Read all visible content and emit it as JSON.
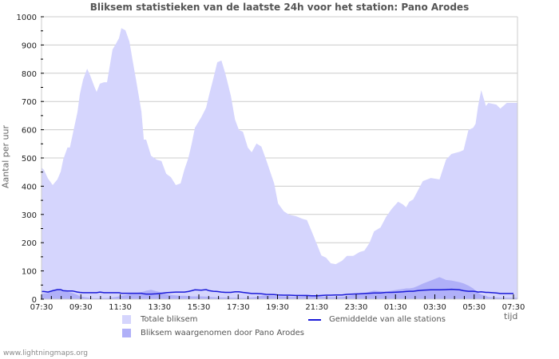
{
  "chart_data": {
    "type": "area",
    "title": "Bliksem statistieken van de laatste 24h voor het station: Pano Arodes",
    "xlabel": "tijd",
    "ylabel": "Aantal per uur",
    "ylim": [
      0,
      1000
    ],
    "yticks": [
      0,
      100,
      200,
      300,
      400,
      500,
      600,
      700,
      800,
      900,
      1000
    ],
    "xtick_labels": [
      "07:30",
      "09:30",
      "11:30",
      "13:30",
      "15:30",
      "17:30",
      "19:30",
      "21:30",
      "23:30",
      "01:30",
      "03:30",
      "05:30",
      "07:30"
    ],
    "grid": true,
    "legend_position": "bottom",
    "x_hours": [
      0,
      0.12,
      0.33,
      0.57,
      0.81,
      0.98,
      1.1,
      1.32,
      1.44,
      1.57,
      1.83,
      1.95,
      2.11,
      2.32,
      2.48,
      2.68,
      2.8,
      2.97,
      3.17,
      3.33,
      3.49,
      3.61,
      3.78,
      3.94,
      4.06,
      4.27,
      4.47,
      4.63,
      4.84,
      5.08,
      5.2,
      5.32,
      5.57,
      5.85,
      6.1,
      6.34,
      6.58,
      6.83,
      7.07,
      7.27,
      7.47,
      7.64,
      7.8,
      8.12,
      8.37,
      8.53,
      8.74,
      8.94,
      9.15,
      9.35,
      9.63,
      9.84,
      10.04,
      10.24,
      10.49,
      10.69,
      10.93,
      11.18,
      11.42,
      11.83,
      12.03,
      12.32,
      12.6,
      12.93,
      13.25,
      13.5,
      13.74,
      13.98,
      14.23,
      14.47,
      14.71,
      14.96,
      15.28,
      15.53,
      15.85,
      16.18,
      16.42,
      16.67,
      16.91,
      17.24,
      17.52,
      17.8,
      18.13,
      18.37,
      18.54,
      18.7,
      18.9,
      19.11,
      19.39,
      19.8,
      20.24,
      20.57,
      20.85,
      21.26,
      21.46,
      21.71,
      21.95,
      22.07,
      22.2,
      22.36,
      22.6,
      22.72,
      23.13,
      23.33,
      23.66,
      24.0
    ],
    "series": [
      {
        "name": "Totale bliksem",
        "color": "#d5d5fd",
        "values": [
          466,
          458,
          427,
          404,
          424,
          452,
          494,
          537,
          537,
          579,
          664,
          726,
          777,
          816,
          791,
          754,
          734,
          763,
          768,
          768,
          833,
          884,
          904,
          924,
          960,
          952,
          912,
          847,
          763,
          664,
          565,
          565,
          508,
          494,
          489,
          444,
          432,
          404,
          410,
          460,
          500,
          551,
          607,
          644,
          678,
          726,
          782,
          839,
          845,
          799,
          720,
          636,
          599,
          593,
          537,
          520,
          551,
          540,
          494,
          410,
          339,
          311,
          299,
          294,
          285,
          280,
          240,
          198,
          155,
          147,
          127,
          124,
          136,
          153,
          153,
          167,
          172,
          198,
          240,
          254,
          291,
          319,
          345,
          336,
          325,
          345,
          353,
          381,
          418,
          429,
          424,
          494,
          514,
          522,
          528,
          599,
          607,
          621,
          684,
          740,
          684,
          695,
          689,
          675,
          695,
          695
        ]
      },
      {
        "name": "Bliksem waargenomen door Pano Arodes",
        "color": "#b0b0f8",
        "values": [
          18,
          20,
          22,
          30,
          32,
          34,
          28,
          26,
          24,
          22,
          15,
          10,
          8,
          6,
          4,
          3,
          3,
          3,
          4,
          4,
          5,
          6,
          8,
          10,
          12,
          14,
          18,
          20,
          22,
          25,
          27,
          30,
          33,
          28,
          24,
          18,
          15,
          13,
          12,
          12,
          11,
          10,
          10,
          10,
          9,
          8,
          7,
          6,
          6,
          6,
          5,
          5,
          4,
          4,
          5,
          6,
          8,
          12,
          13,
          11,
          10,
          9,
          8,
          8,
          10,
          12,
          14,
          12,
          10,
          8,
          7,
          7,
          8,
          10,
          14,
          18,
          22,
          26,
          30,
          28,
          26,
          30,
          34,
          36,
          38,
          38,
          40,
          46,
          55,
          66,
          78,
          68,
          66,
          60,
          56,
          48,
          38,
          30,
          22,
          16,
          12,
          8,
          6,
          5,
          5,
          5
        ]
      },
      {
        "name": "Gemiddelde van alle stations",
        "color": "#1a1ad8",
        "values": [
          27,
          27,
          25,
          30,
          34,
          34,
          30,
          29,
          29,
          29,
          25,
          24,
          23,
          23,
          23,
          23,
          23,
          25,
          23,
          23,
          23,
          23,
          23,
          23,
          21,
          21,
          21,
          21,
          21,
          21,
          19,
          18,
          18,
          19,
          21,
          23,
          24,
          25,
          25,
          25,
          27,
          30,
          33,
          32,
          34,
          30,
          28,
          27,
          25,
          24,
          24,
          26,
          26,
          24,
          22,
          20,
          20,
          19,
          17,
          16,
          15,
          14,
          14,
          13,
          13,
          13,
          12,
          12,
          13,
          14,
          14,
          15,
          15,
          17,
          18,
          19,
          20,
          21,
          22,
          22,
          24,
          24,
          25,
          26,
          27,
          28,
          28,
          30,
          32,
          33,
          33,
          34,
          35,
          33,
          30,
          28,
          28,
          27,
          25,
          26,
          24,
          24,
          22,
          20,
          20,
          20
        ]
      }
    ]
  },
  "legend": {
    "items": [
      {
        "label": "Totale bliksem",
        "color": "#d5d5fd"
      },
      {
        "label": "Bliksem waargenomen door Pano Arodes",
        "color": "#b0b0f8"
      },
      {
        "label": "Gemiddelde van alle stations",
        "color": "#1a1ad8"
      }
    ]
  },
  "footer": "www.lightningmaps.org"
}
